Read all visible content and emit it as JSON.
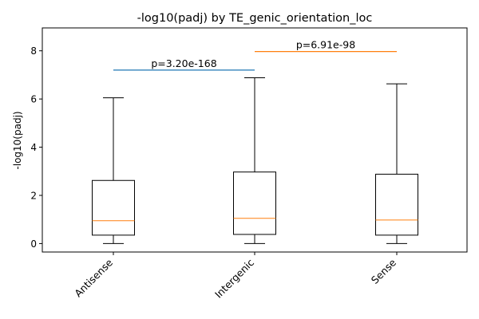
{
  "chart_data": {
    "type": "box",
    "title": "-log10(padj) by TE_genic_orientation_loc",
    "xlabel": "",
    "ylabel": "-log10(padj)",
    "ylim": [
      -0.35,
      8.95
    ],
    "yticks": [
      0,
      2,
      4,
      6,
      8
    ],
    "categories": [
      "Antisense",
      "Intergenic",
      "Sense"
    ],
    "boxes": [
      {
        "category": "Antisense",
        "whisker_low": 0.0,
        "q1": 0.35,
        "median": 0.95,
        "q3": 2.62,
        "whisker_high": 6.05
      },
      {
        "category": "Intergenic",
        "whisker_low": 0.0,
        "q1": 0.38,
        "median": 1.05,
        "q3": 2.97,
        "whisker_high": 6.88
      },
      {
        "category": "Sense",
        "whisker_low": 0.0,
        "q1": 0.35,
        "median": 0.98,
        "q3": 2.88,
        "whisker_high": 6.63
      }
    ],
    "annotations": [
      {
        "from": "Antisense",
        "to": "Intergenic",
        "y": 7.2,
        "label": "p=3.20e-168",
        "color": "#1f77b4"
      },
      {
        "from": "Intergenic",
        "to": "Sense",
        "y": 7.97,
        "label": "p=6.91e-98",
        "color": "#ff7f0e"
      }
    ],
    "colors": {
      "box_edge": "#000000",
      "median": "#ff7f0e",
      "axes": "#000000"
    },
    "grid": false,
    "legend": "none"
  }
}
